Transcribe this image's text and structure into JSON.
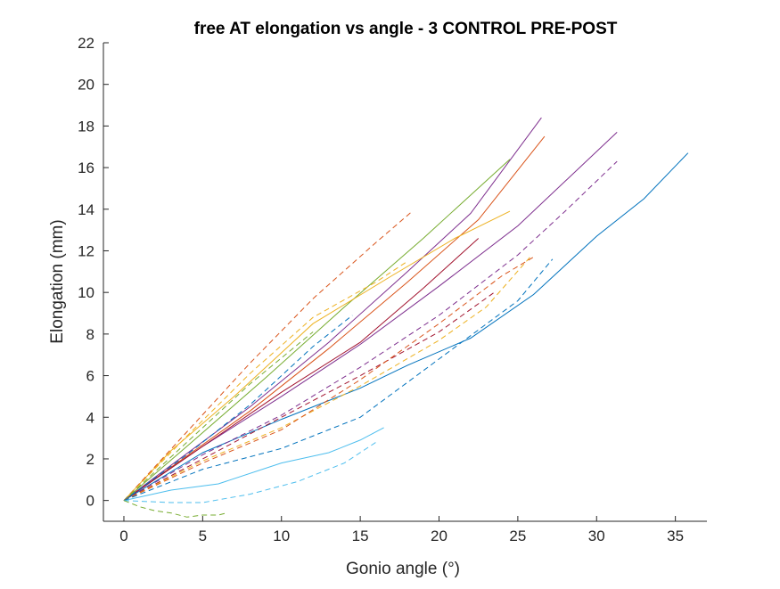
{
  "chart_data": {
    "type": "line",
    "title": "free AT elongation vs angle - 3 CONTROL PRE-POST",
    "xlabel": "Gonio angle (°)",
    "ylabel": "Elongation (mm)",
    "xlim": [
      -1.3,
      37
    ],
    "ylim": [
      -1,
      22
    ],
    "xticks": [
      "0",
      "5",
      "10",
      "15",
      "20",
      "25",
      "30",
      "35"
    ],
    "xtick_values": [
      0,
      5,
      10,
      15,
      20,
      25,
      30,
      35
    ],
    "yticks": [
      "0",
      "2",
      "4",
      "6",
      "8",
      "10",
      "12",
      "14",
      "16",
      "18",
      "20",
      "22"
    ],
    "ytick_values": [
      0,
      2,
      4,
      6,
      8,
      10,
      12,
      14,
      16,
      18,
      20,
      22
    ],
    "grid": false,
    "legend": "none",
    "series": [
      {
        "color": "#7E2F8E",
        "style": "solid",
        "points": [
          [
            0,
            0
          ],
          [
            3,
            1.7
          ],
          [
            8,
            4.5
          ],
          [
            13,
            7.6
          ],
          [
            18,
            11
          ],
          [
            22,
            13.8
          ],
          [
            26.5,
            18.4
          ]
        ]
      },
      {
        "color": "#D95319",
        "style": "solid",
        "points": [
          [
            0,
            0
          ],
          [
            3,
            1.6
          ],
          [
            8,
            4.3
          ],
          [
            13,
            7.3
          ],
          [
            18,
            10.5
          ],
          [
            22.5,
            13.5
          ],
          [
            26.7,
            17.5
          ]
        ]
      },
      {
        "color": "#77AC30",
        "style": "solid",
        "points": [
          [
            0,
            0
          ],
          [
            4,
            2.6
          ],
          [
            9,
            5.9
          ],
          [
            14,
            9.3
          ],
          [
            19,
            12.6
          ],
          [
            24.5,
            16.4
          ]
        ]
      },
      {
        "color": "#EDB120",
        "style": "solid",
        "points": [
          [
            0,
            0
          ],
          [
            3,
            2.4
          ],
          [
            7,
            5.0
          ],
          [
            12,
            8.5
          ],
          [
            17,
            10.8
          ],
          [
            21,
            12.6
          ],
          [
            24.5,
            13.9
          ]
        ]
      },
      {
        "color": "#7E2F8E",
        "style": "solid",
        "points": [
          [
            0,
            0
          ],
          [
            5,
            2.6
          ],
          [
            10,
            5.0
          ],
          [
            15,
            7.5
          ],
          [
            20,
            10.3
          ],
          [
            25,
            13.2
          ],
          [
            31.3,
            17.7
          ]
        ]
      },
      {
        "color": "#A2142F",
        "style": "solid",
        "points": [
          [
            0,
            0
          ],
          [
            5,
            2.6
          ],
          [
            10,
            5.2
          ],
          [
            15,
            7.6
          ],
          [
            19,
            10.2
          ],
          [
            22.5,
            12.6
          ]
        ]
      },
      {
        "color": "#0072BD",
        "style": "solid",
        "points": [
          [
            0,
            0
          ],
          [
            5,
            2.3
          ],
          [
            10,
            3.9
          ],
          [
            15,
            5.4
          ],
          [
            18,
            6.5
          ],
          [
            22,
            7.8
          ],
          [
            26,
            9.9
          ],
          [
            30,
            12.7
          ],
          [
            33,
            14.5
          ],
          [
            35.8,
            16.7
          ]
        ]
      },
      {
        "color": "#4DBEEE",
        "style": "solid",
        "points": [
          [
            0,
            0
          ],
          [
            3,
            0.5
          ],
          [
            6,
            0.8
          ],
          [
            10,
            1.8
          ],
          [
            13,
            2.3
          ],
          [
            15,
            2.9
          ],
          [
            16.5,
            3.5
          ]
        ]
      },
      {
        "color": "#D95319",
        "style": "dashed",
        "points": [
          [
            0,
            0
          ],
          [
            4,
            3.3
          ],
          [
            8,
            6.6
          ],
          [
            12,
            9.7
          ],
          [
            16,
            12.4
          ],
          [
            18.3,
            13.9
          ]
        ]
      },
      {
        "color": "#EDB120",
        "style": "dashed",
        "points": [
          [
            0,
            0
          ],
          [
            4,
            3.1
          ],
          [
            8,
            6.1
          ],
          [
            12,
            8.8
          ],
          [
            16,
            10.5
          ],
          [
            18,
            11.5
          ]
        ]
      },
      {
        "color": "#77AC30",
        "style": "dashed",
        "points": [
          [
            0,
            0
          ],
          [
            4,
            2.8
          ],
          [
            8,
            5.6
          ],
          [
            12,
            8.1
          ]
        ]
      },
      {
        "color": "#0072BD",
        "style": "dashed",
        "points": [
          [
            0,
            0
          ],
          [
            4,
            2.2
          ],
          [
            8,
            4.6
          ],
          [
            12,
            7.4
          ],
          [
            14.5,
            8.9
          ]
        ]
      },
      {
        "color": "#7E2F8E",
        "style": "dashed",
        "points": [
          [
            0,
            0
          ],
          [
            5,
            2.2
          ],
          [
            10,
            4.1
          ],
          [
            15,
            6.4
          ],
          [
            20,
            8.9
          ],
          [
            25,
            11.8
          ],
          [
            28,
            13.9
          ],
          [
            31.3,
            16.3
          ]
        ]
      },
      {
        "color": "#A2142F",
        "style": "dashed",
        "points": [
          [
            0,
            0
          ],
          [
            5,
            2.0
          ],
          [
            10,
            4.0
          ],
          [
            15,
            6.0
          ],
          [
            20,
            8.1
          ],
          [
            23.5,
            10.0
          ]
        ]
      },
      {
        "color": "#EDB120",
        "style": "dashed",
        "points": [
          [
            0,
            0
          ],
          [
            5,
            1.9
          ],
          [
            10,
            3.5
          ],
          [
            15,
            5.5
          ],
          [
            20,
            7.7
          ],
          [
            23,
            9.3
          ],
          [
            25.9,
            11.8
          ]
        ]
      },
      {
        "color": "#D95319",
        "style": "dashed",
        "points": [
          [
            0,
            0
          ],
          [
            5,
            1.8
          ],
          [
            10,
            3.4
          ],
          [
            15,
            5.8
          ],
          [
            20,
            8.5
          ],
          [
            24,
            10.8
          ],
          [
            26,
            11.7
          ]
        ]
      },
      {
        "color": "#0072BD",
        "style": "dashed",
        "points": [
          [
            0,
            0
          ],
          [
            5,
            1.5
          ],
          [
            10,
            2.5
          ],
          [
            15,
            4.0
          ],
          [
            20,
            6.8
          ],
          [
            25,
            9.6
          ],
          [
            27.2,
            11.6
          ]
        ]
      },
      {
        "color": "#4DBEEE",
        "style": "dashed",
        "points": [
          [
            0,
            0
          ],
          [
            3,
            -0.1
          ],
          [
            5,
            -0.1
          ],
          [
            8,
            0.3
          ],
          [
            11,
            0.9
          ],
          [
            14,
            1.8
          ],
          [
            16,
            2.8
          ]
        ]
      },
      {
        "color": "#77AC30",
        "style": "dashed",
        "points": [
          [
            0,
            0
          ],
          [
            1,
            -0.3
          ],
          [
            2,
            -0.5
          ],
          [
            3,
            -0.6
          ],
          [
            4,
            -0.8
          ],
          [
            5,
            -0.7
          ],
          [
            6,
            -0.7
          ],
          [
            6.5,
            -0.6
          ]
        ]
      }
    ]
  }
}
